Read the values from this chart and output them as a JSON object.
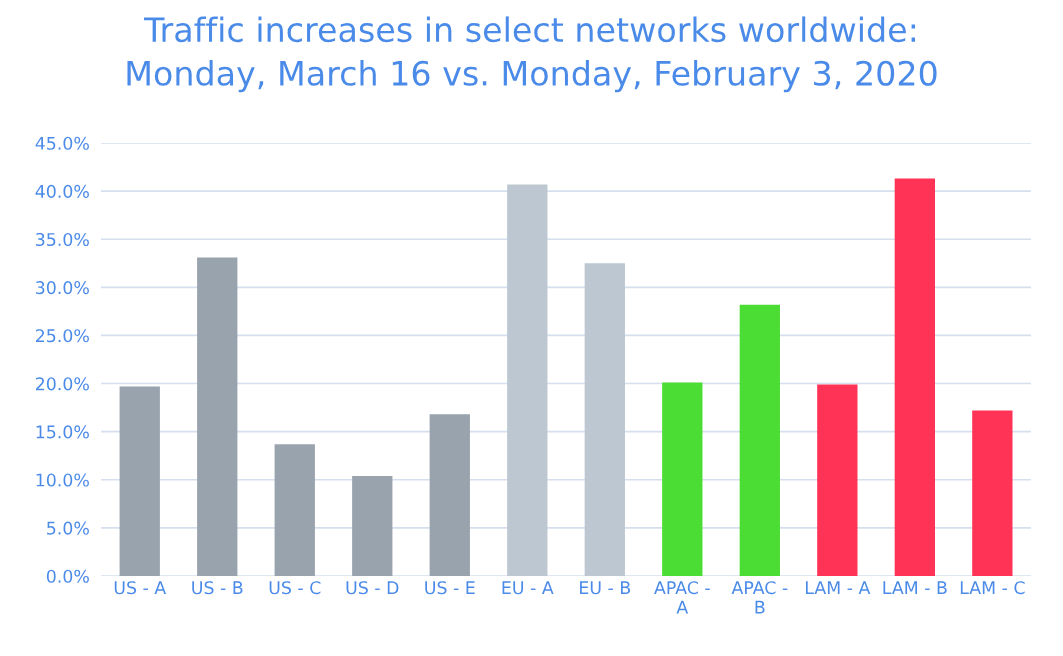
{
  "chart_data": {
    "type": "bar",
    "title": "Traffic increases in select networks worldwide:\nMonday, March 16 vs. Monday, February 3, 2020",
    "categories": [
      "US - A",
      "US - B",
      "US - C",
      "US - D",
      "US - E",
      "EU - A",
      "EU - B",
      "APAC -\nA",
      "APAC -\nB",
      "LAM - A",
      "LAM - B",
      "LAM - C"
    ],
    "values": [
      19.7,
      33.1,
      13.7,
      10.4,
      16.8,
      40.7,
      32.5,
      20.1,
      28.2,
      19.9,
      41.3,
      17.2
    ],
    "colors": [
      "#99a3ae",
      "#99a3ae",
      "#99a3ae",
      "#99a3ae",
      "#99a3ae",
      "#bdc7d1",
      "#bdc7d1",
      "#4cdd35",
      "#4cdd35",
      "#ff3356",
      "#ff3356",
      "#ff3356"
    ],
    "ylim": [
      0,
      45
    ],
    "yticks": [
      {
        "value": 0,
        "label": "0.0%"
      },
      {
        "value": 5,
        "label": "5.0%"
      },
      {
        "value": 10,
        "label": "10.0%"
      },
      {
        "value": 15,
        "label": "15.0%"
      },
      {
        "value": 20,
        "label": "20.0%"
      },
      {
        "value": 25,
        "label": "25.0%"
      },
      {
        "value": 30,
        "label": "30.0%"
      },
      {
        "value": 35,
        "label": "35.0%"
      },
      {
        "value": 40,
        "label": "40.0%"
      },
      {
        "value": 45,
        "label": "45.0%"
      }
    ],
    "grid": "y",
    "legend": false
  }
}
